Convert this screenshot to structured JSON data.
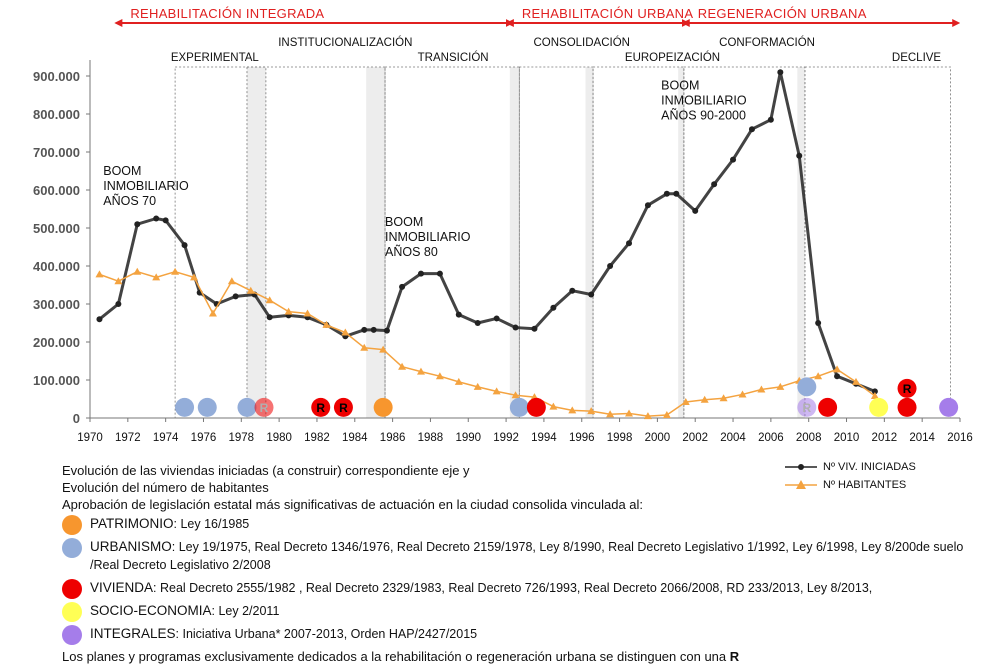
{
  "chart_data": {
    "type": "line",
    "x_axis": {
      "min": 1970,
      "max": 2016,
      "ticks": [
        1970,
        1972,
        1974,
        1976,
        1978,
        1980,
        1982,
        1984,
        1986,
        1988,
        1990,
        1992,
        1994,
        1996,
        1998,
        2000,
        2002,
        2004,
        2006,
        2008,
        2010,
        2012,
        2014,
        2016
      ]
    },
    "y_axis": {
      "min": 0,
      "max": 950000,
      "ticks": [
        0,
        100000,
        200000,
        300000,
        400000,
        500000,
        600000,
        700000,
        800000,
        900000
      ],
      "tick_labels": [
        "0",
        "100.000",
        "200.000",
        "300.000",
        "400.000",
        "500.000",
        "600.000",
        "700.000",
        "800.000",
        "900.000"
      ]
    },
    "series": [
      {
        "name": "Nº VIV. INICIADAS",
        "color": "#222222",
        "x": [
          1970.5,
          1971.5,
          1972.5,
          1973.5,
          1974,
          1975,
          1975.8,
          1976.7,
          1977.7,
          1978.7,
          1979.5,
          1980.5,
          1981.5,
          1982.5,
          1983.5,
          1984.5,
          1985,
          1985.7,
          1986.5,
          1987.5,
          1988.5,
          1989.5,
          1990.5,
          1991.5,
          1992.5,
          1993.5,
          1994.5,
          1995.5,
          1996.5,
          1997.5,
          1998.5,
          1999.5,
          2000.5,
          2001,
          2002,
          2003,
          2004,
          2005,
          2006,
          2006.5,
          2007.5,
          2008.5,
          2009.5,
          2010.5,
          2011.5
        ],
        "y": [
          260000,
          300000,
          510000,
          525000,
          520000,
          455000,
          330000,
          300000,
          320000,
          325000,
          265000,
          270000,
          265000,
          245000,
          215000,
          232000,
          232000,
          230000,
          345000,
          380000,
          380000,
          272000,
          250000,
          262000,
          238000,
          235000,
          290000,
          335000,
          325000,
          400000,
          460000,
          560000,
          590000,
          590000,
          545000,
          615000,
          680000,
          760000,
          785000,
          910000,
          690000,
          250000,
          110000,
          90000,
          70000
        ]
      },
      {
        "name": "Nº HABITANTES",
        "color": "#f4a340",
        "x": [
          1970.5,
          1971.5,
          1972.5,
          1973.5,
          1974.5,
          1975.5,
          1976.5,
          1977.5,
          1978.5,
          1979.5,
          1980.5,
          1981.5,
          1982.5,
          1983.5,
          1984.5,
          1985.5,
          1986.5,
          1987.5,
          1988.5,
          1989.5,
          1990.5,
          1991.5,
          1992.5,
          1993.5,
          1994.5,
          1995.5,
          1996.5,
          1997.5,
          1998.5,
          1999.5,
          2000.5,
          2001.5,
          2002.5,
          2003.5,
          2004.5,
          2005.5,
          2006.5,
          2007.5,
          2008.5,
          2009.5,
          2010.5,
          2011.5
        ],
        "y": [
          378000,
          360000,
          385000,
          370000,
          385000,
          370000,
          275000,
          360000,
          335000,
          310000,
          280000,
          275000,
          245000,
          225000,
          185000,
          180000,
          135000,
          122000,
          110000,
          95000,
          82000,
          70000,
          60000,
          55000,
          30000,
          20000,
          18000,
          10000,
          12000,
          5000,
          8000,
          42000,
          48000,
          52000,
          62000,
          75000,
          82000,
          98000,
          110000,
          128000,
          95000,
          58000
        ]
      }
    ],
    "phases_top": [
      {
        "label": "REHABILITACIÓN INTEGRADA",
        "from": 1971.5,
        "to": 1992.2
      },
      {
        "label": "REHABILITACIÓN URBANA",
        "from": 1992.2,
        "to": 2001.5
      },
      {
        "label": "REGENERACIÓN URBANA",
        "from": 2001.5,
        "to": 2015.8
      }
    ],
    "periods": [
      {
        "label": "EXPERIMENTAL",
        "from": 1974.5,
        "to": 1979.3,
        "label_x": 1976.6,
        "label_row": 2
      },
      {
        "label": "INSTITUCIONALIZACIÓN",
        "from": 1978.3,
        "to": 1985.6,
        "label_x": 1983.5,
        "label_row": 1
      },
      {
        "label": "TRANSICIÓN",
        "from": 1985.6,
        "to": 1992.7,
        "label_x": 1989.2,
        "label_row": 2
      },
      {
        "label": "CONSOLIDACIÓN",
        "from": 1992.7,
        "to": 1996.6,
        "label_x": 1996.0,
        "label_row": 1
      },
      {
        "label": "EUROPEIZACIÓN",
        "from": 1996.6,
        "to": 2001.4,
        "label_x": 2000.8,
        "label_row": 2
      },
      {
        "label": "CONFORMACIÓN",
        "from": 2001.4,
        "to": 2007.8,
        "label_x": 2005.8,
        "label_row": 1
      },
      {
        "label": "DECLIVE",
        "from": 2007.8,
        "to": 2015.5,
        "label_x": 2013.7,
        "label_row": 2
      }
    ],
    "shaded_bands": [
      [
        1978.3,
        1979.3
      ],
      [
        1984.6,
        1985.6
      ],
      [
        1992.2,
        1992.7
      ],
      [
        1996.2,
        1996.6
      ],
      [
        2001.1,
        2001.4
      ],
      [
        2007.4,
        2007.8
      ]
    ],
    "annotations": [
      {
        "lines": [
          "BOOM",
          "INMOBILIARIO",
          "AÑOS 70"
        ],
        "x": 1970.7,
        "y": 640000
      },
      {
        "lines": [
          "BOOM",
          "INMOBILIARIO",
          "AÑOS 80"
        ],
        "x": 1985.6,
        "y": 505000
      },
      {
        "lines": [
          "BOOM",
          "INMOBILIARIO",
          "AÑOS 90-2000"
        ],
        "x": 2000.2,
        "y": 865000
      }
    ],
    "legislation_markers": [
      {
        "x": 1975.0,
        "y": 28000,
        "category": "urbanismo",
        "label": ""
      },
      {
        "x": 1976.2,
        "y": 28000,
        "category": "urbanismo",
        "label": ""
      },
      {
        "x": 1978.3,
        "y": 28000,
        "category": "urbanismo",
        "label": ""
      },
      {
        "x": 1979.2,
        "y": 28000,
        "category": "vivienda",
        "label": "R",
        "faded": true
      },
      {
        "x": 1982.2,
        "y": 28000,
        "category": "vivienda",
        "label": "R"
      },
      {
        "x": 1983.4,
        "y": 28000,
        "category": "vivienda",
        "label": "R"
      },
      {
        "x": 1985.5,
        "y": 28000,
        "category": "patrimonio",
        "label": ""
      },
      {
        "x": 1992.7,
        "y": 28000,
        "category": "urbanismo",
        "label": ""
      },
      {
        "x": 1993.6,
        "y": 28000,
        "category": "vivienda",
        "label": ""
      },
      {
        "x": 2007.9,
        "y": 82000,
        "category": "urbanismo",
        "label": ""
      },
      {
        "x": 2007.9,
        "y": 28000,
        "category": "integrales",
        "label": "R",
        "faded": true
      },
      {
        "x": 2009.0,
        "y": 28000,
        "category": "vivienda",
        "label": ""
      },
      {
        "x": 2011.7,
        "y": 28000,
        "category": "socio",
        "label": ""
      },
      {
        "x": 2013.2,
        "y": 78000,
        "category": "vivienda",
        "label": "R"
      },
      {
        "x": 2013.2,
        "y": 28000,
        "category": "vivienda",
        "label": ""
      },
      {
        "x": 2015.4,
        "y": 28000,
        "category": "integrales",
        "label": ""
      }
    ]
  },
  "colors": {
    "patrimonio": "#f7962e",
    "urbanismo": "#93add9",
    "vivienda": "#ee0000",
    "socio": "#ffff55",
    "integrales": "#a57dea",
    "phase_arrow": "#e02020",
    "house_line": "#222222",
    "pop_line": "#f4a340"
  },
  "legend": {
    "line1": "Evolución de las viviendas iniciadas (a construir) correspondiente eje y",
    "line2": "Evolución del número de habitantes",
    "line3": "Aprobación de legislación estatal más significativas de actuación en la ciudad consolida vinculada al:",
    "categories": [
      {
        "key": "patrimonio",
        "name": "PATRIMONIO",
        "laws": ": Ley 16/1985"
      },
      {
        "key": "urbanismo",
        "name": "URBANISMO",
        "laws": ": Ley 19/1975, Real Decreto 1346/1976, Real Decreto 2159/1978, Ley 8/1990, Real Decreto Legislativo 1/1992, Ley 6/1998, Ley 8/200de suelo /Real Decreto Legislativo 2/2008"
      },
      {
        "key": "vivienda",
        "name": "VIVIENDA",
        "laws": ": Real Decreto 2555/1982 , Real Decreto 2329/1983, Real Decreto 726/1993, Real Decreto 2066/2008, RD 233/2013, Ley 8/2013,"
      },
      {
        "key": "socio",
        "name": "SOCIO-ECONOMIA",
        "laws": ": Ley 2/2011"
      },
      {
        "key": "integrales",
        "name": "INTEGRALES",
        "laws": ": Iniciativa Urbana* 2007-2013, Orden HAP/2427/2015"
      }
    ],
    "footer": "Los planes y programas exclusivamente dedicados a la rehabilitación o regeneración urbana se distinguen con una",
    "footer_r": "R",
    "series_legend": [
      {
        "name": "Nº VIV. INICIADAS"
      },
      {
        "name": "Nº HABITANTES"
      }
    ]
  }
}
